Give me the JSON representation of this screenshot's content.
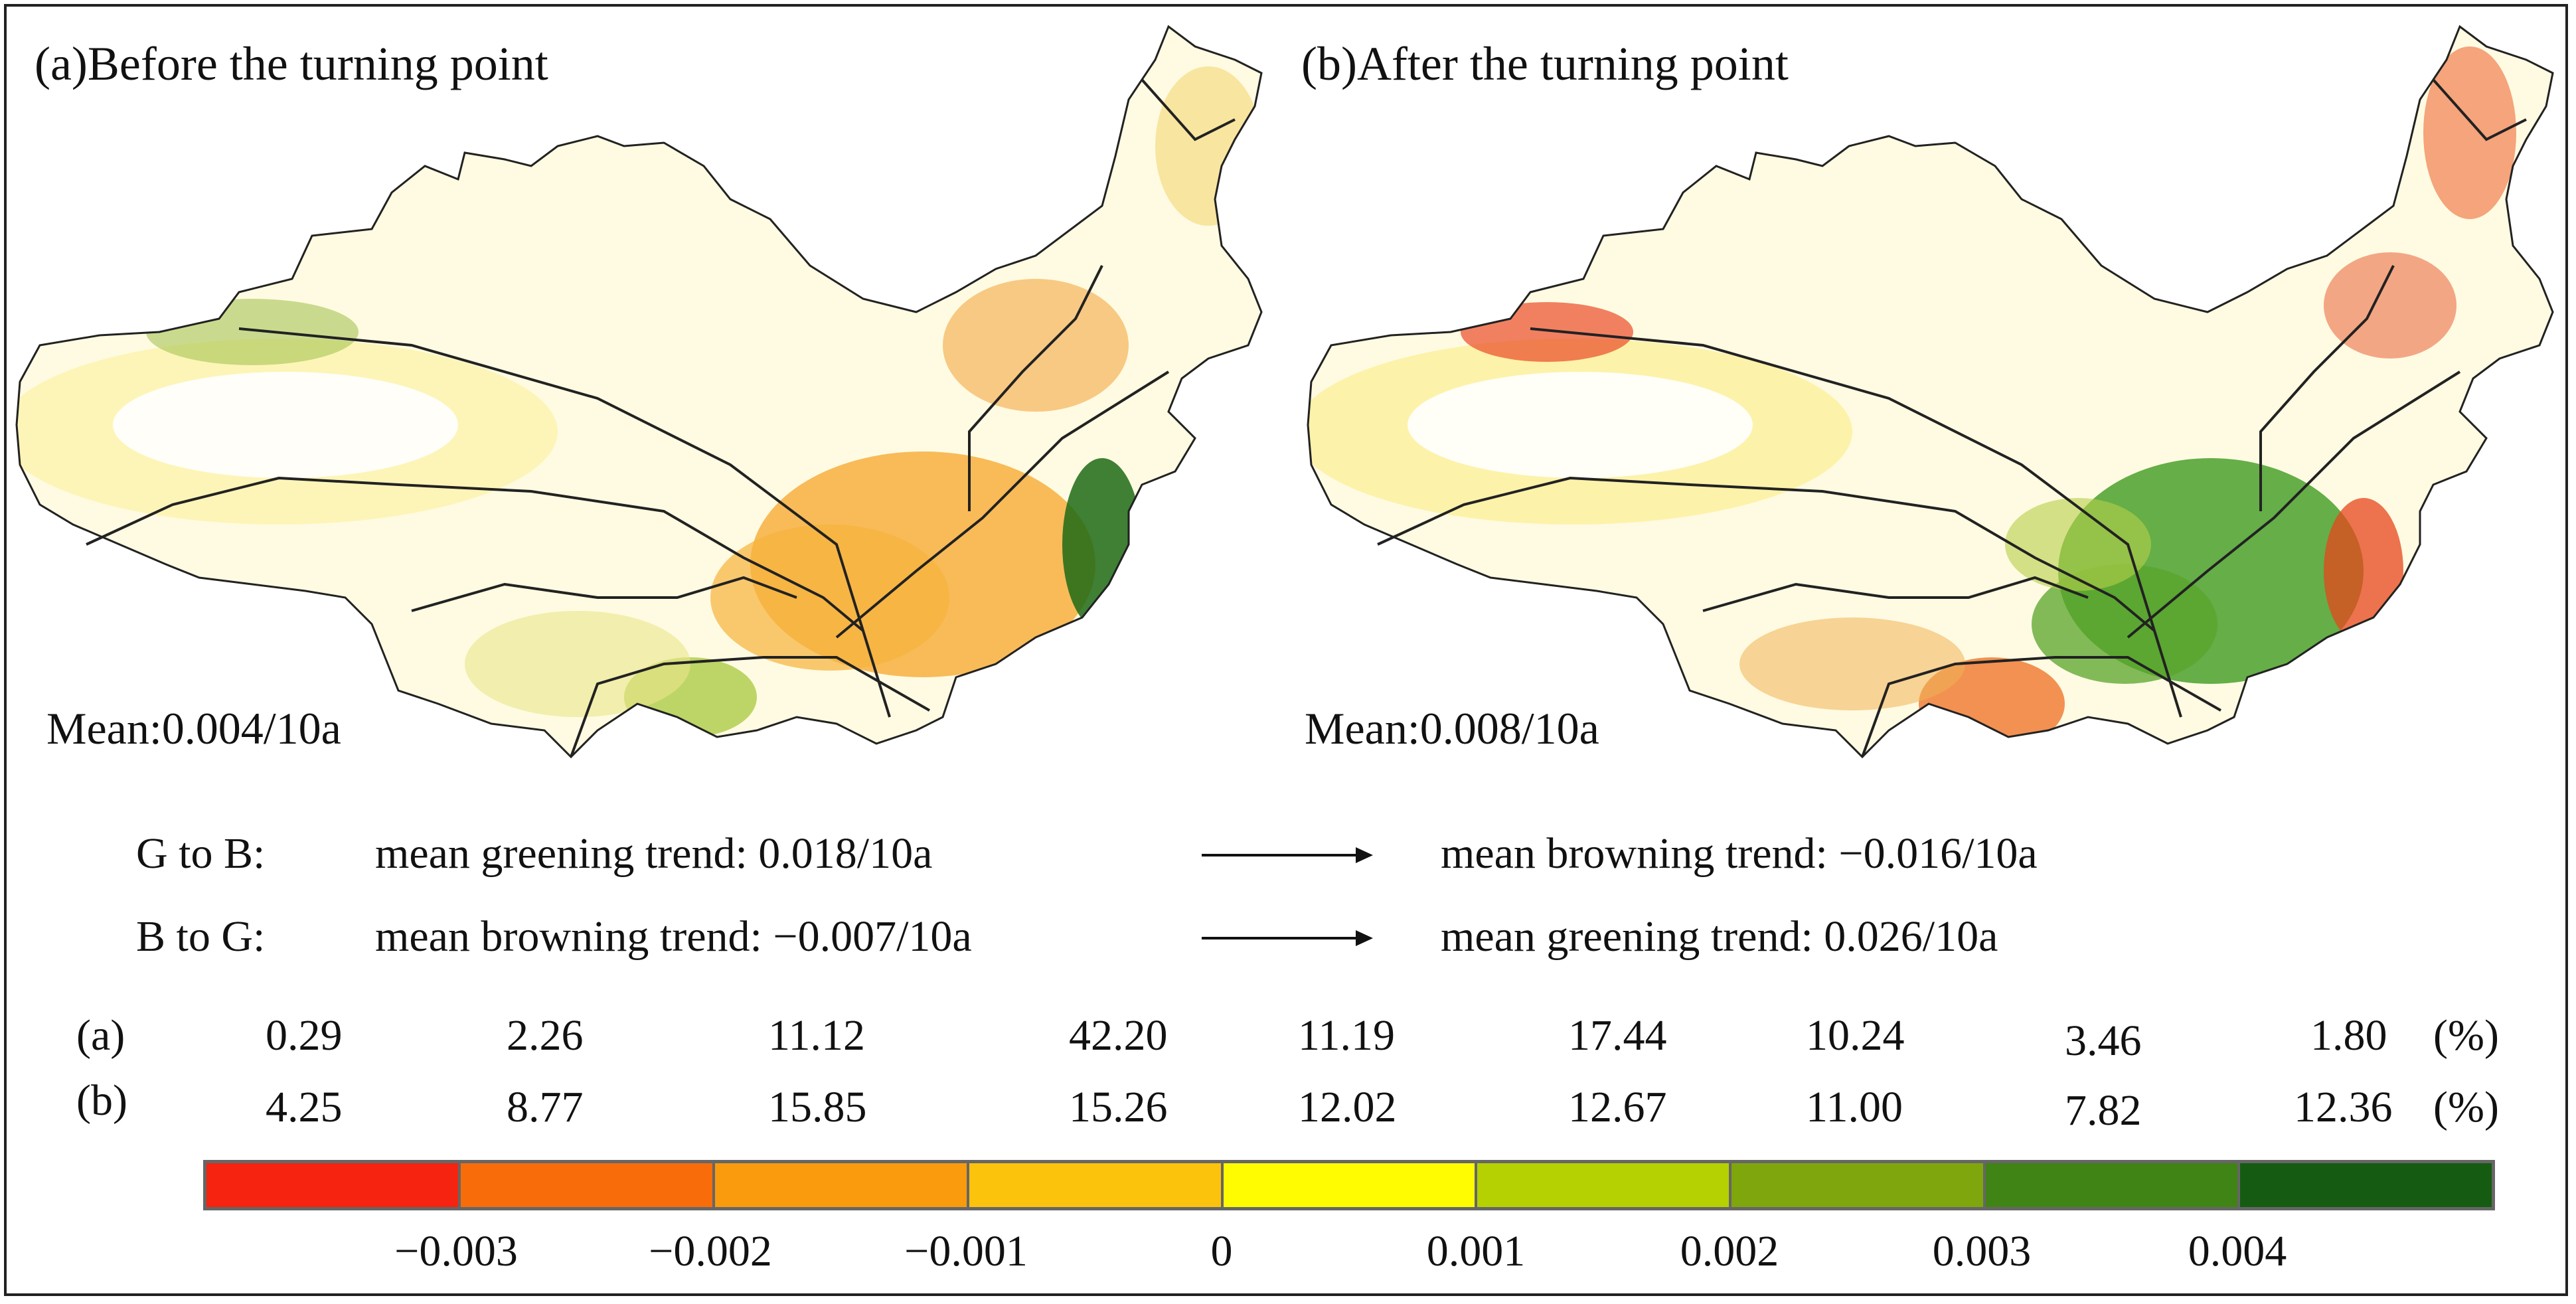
{
  "panel_a": {
    "title": "(a)Before the turning point",
    "mean": "Mean:0.004/10a"
  },
  "panel_b": {
    "title": "(b)After the turning point",
    "mean": "Mean:0.008/10a"
  },
  "transitions": [
    {
      "label": "G to B:",
      "before": "mean greening trend: 0.018/10a",
      "after": "mean browning trend: −0.016/10a"
    },
    {
      "label": "B to G:",
      "before": "mean browning trend: −0.007/10a",
      "after": "mean greening trend: 0.026/10a"
    }
  ],
  "percent_rows": [
    {
      "label": "(a)",
      "values": [
        "0.29",
        "2.26",
        "11.12",
        "42.20",
        "11.19",
        "17.44",
        "10.24",
        "3.46",
        "1.80"
      ],
      "unit": "(%)"
    },
    {
      "label": "(b)",
      "values": [
        "4.25",
        "8.77",
        "15.85",
        "15.26",
        "12.02",
        "12.67",
        "11.00",
        "7.82",
        "12.36"
      ],
      "unit": "(%)"
    }
  ],
  "legend": {
    "colors": [
      "#f5230f",
      "#f86d0a",
      "#f99b0d",
      "#fcc30c",
      "#fffb00",
      "#b6d101",
      "#7fa60c",
      "#3f8414",
      "#155c12"
    ],
    "ticks": [
      "−0.003",
      "−0.002",
      "−0.001",
      "0",
      "0.001",
      "0.002",
      "0.003",
      "0.004"
    ]
  },
  "chart_data": {
    "type": "map-legend-distribution",
    "classes": 9,
    "tick_values": [
      -0.003,
      -0.002,
      -0.001,
      0,
      0.001,
      0.002,
      0.003,
      0.004
    ],
    "series": [
      {
        "name": "(a) Before the turning point",
        "values": [
          0.29,
          2.26,
          11.12,
          42.2,
          11.19,
          17.44,
          10.24,
          3.46,
          1.8
        ]
      },
      {
        "name": "(b) After the turning point",
        "values": [
          4.25,
          8.77,
          15.85,
          15.26,
          12.02,
          12.67,
          11.0,
          7.82,
          12.36
        ]
      }
    ],
    "unit": "%"
  }
}
